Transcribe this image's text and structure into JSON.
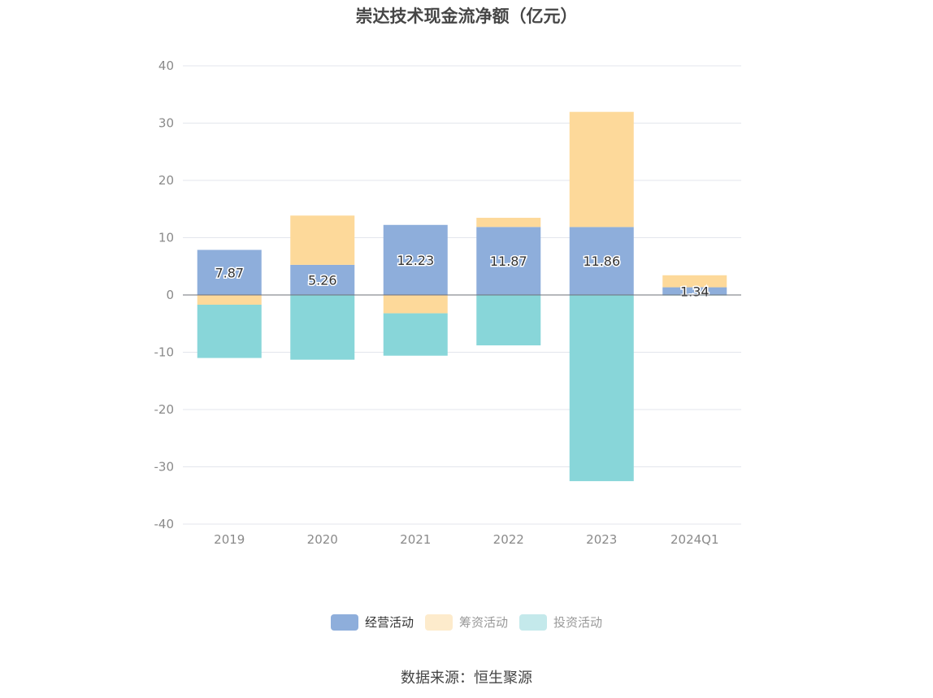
{
  "chart_data": {
    "type": "bar",
    "stacked": true,
    "title": "崇达技术现金流净额（亿元）",
    "categories": [
      "2019",
      "2020",
      "2021",
      "2022",
      "2023",
      "2024Q1"
    ],
    "series": [
      {
        "name": "经营活动",
        "color": "#8eaedb",
        "values": [
          7.87,
          5.26,
          12.23,
          11.87,
          11.86,
          1.34
        ],
        "labels": [
          "7.87",
          "5.26",
          "12.23",
          "11.87",
          "11.86",
          "1.34"
        ]
      },
      {
        "name": "筹资活动",
        "color": "#fdd99a",
        "values": [
          -1.7,
          8.6,
          -3.2,
          1.6,
          20.1,
          2.1
        ]
      },
      {
        "name": "投资活动",
        "color": "#88d6d9",
        "values": [
          -9.3,
          -11.3,
          -7.4,
          -8.8,
          -32.5,
          -0.1
        ]
      }
    ],
    "ylim": [
      -40,
      40
    ],
    "yticks": [
      "40",
      "30",
      "20",
      "10",
      "0",
      "-10",
      "-20",
      "-30",
      "-40"
    ],
    "grid": true,
    "legend_position": "bottom",
    "legend_swatch_colors": [
      "#8eaedb",
      "#fdebcc",
      "#c4e9eb"
    ]
  },
  "source": "数据来源：恒生聚源"
}
